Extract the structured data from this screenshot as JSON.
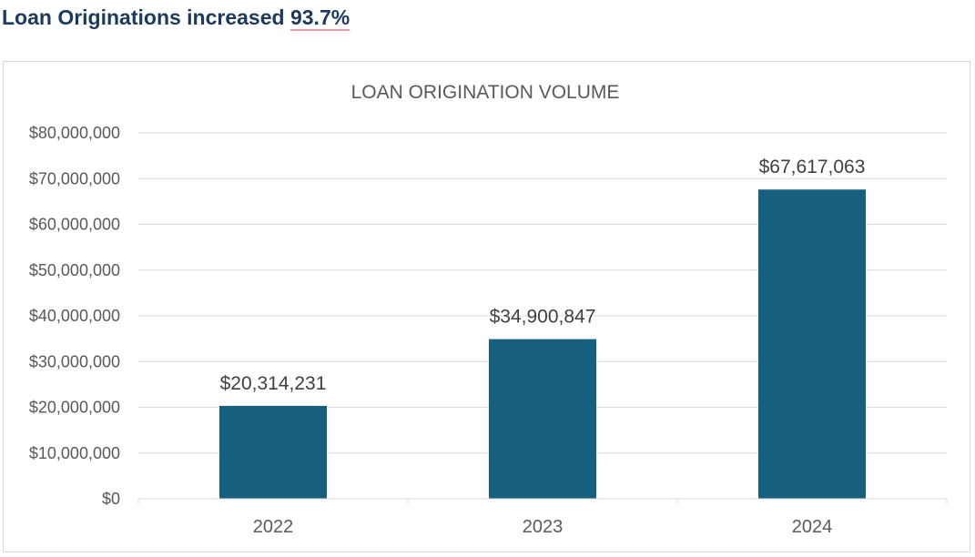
{
  "headline": {
    "text": "Loan Originations increased ",
    "highlight": "93.7%"
  },
  "chart_data": {
    "type": "bar",
    "title": "LOAN ORIGINATION VOLUME",
    "categories": [
      "2022",
      "2023",
      "2024"
    ],
    "values": [
      20314231,
      34900847,
      67617063
    ],
    "data_labels": [
      "$20,314,231",
      "$34,900,847",
      "$67,617,063"
    ],
    "y_ticks": [
      0,
      10000000,
      20000000,
      30000000,
      40000000,
      50000000,
      60000000,
      70000000,
      80000000
    ],
    "y_tick_labels": [
      "$0",
      "$10,000,000",
      "$20,000,000",
      "$30,000,000",
      "$40,000,000",
      "$50,000,000",
      "$60,000,000",
      "$70,000,000",
      "$80,000,000"
    ],
    "ylim": [
      0,
      80000000
    ],
    "xlabel": "",
    "ylabel": "",
    "grid": true,
    "legend": "none",
    "bar_color": "#17607f"
  }
}
